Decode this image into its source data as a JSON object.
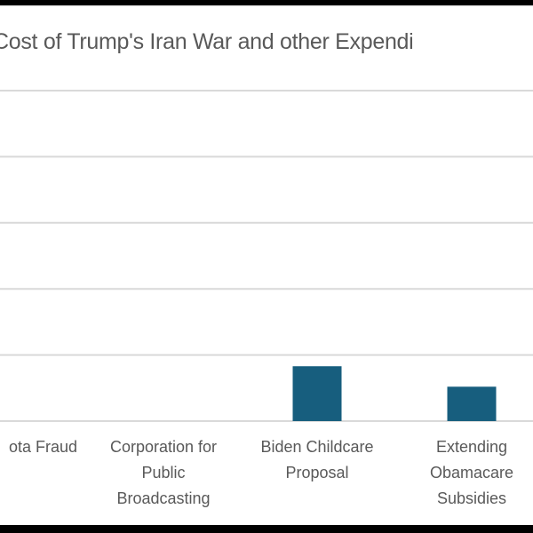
{
  "chart_data": {
    "type": "bar",
    "title": "Cost of Trump's Iran War and other Expendi",
    "categories": [
      "ota Fraud",
      "Corporation for Public Broadcasting",
      "Biden Childcare Proposal",
      "Extending Obamacare Subsidies"
    ],
    "category_lines": [
      [
        "ota Fraud"
      ],
      [
        "Corporation for",
        "Public",
        "Broadcasting"
      ],
      [
        "Biden Childcare",
        "Proposal"
      ],
      [
        "Extending",
        "Obamacare",
        "Subsidies"
      ]
    ],
    "values": [
      0,
      0,
      0.83,
      0.52
    ],
    "ylim": [
      0,
      5
    ],
    "gridlines": [
      1,
      2,
      3,
      4,
      5
    ],
    "grid": true,
    "xlabel": "",
    "ylabel": "",
    "bar_color": "#175e7e"
  }
}
